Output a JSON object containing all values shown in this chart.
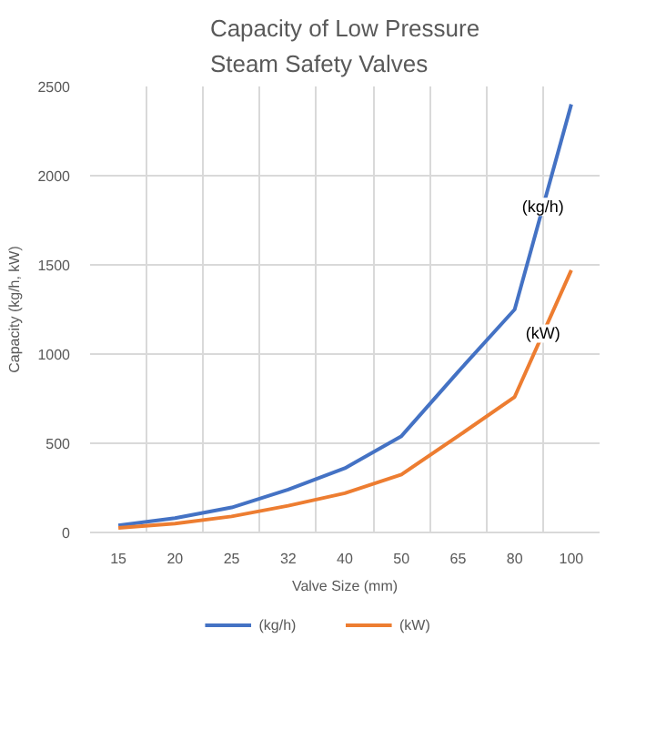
{
  "chart_data": {
    "type": "line",
    "title": "Capacity of Low Pressure Steam Safety Valves",
    "xlabel": "Valve Size (mm)",
    "ylabel": "Capacity (kg/h, kW)",
    "categories": [
      "15",
      "20",
      "25",
      "32",
      "40",
      "50",
      "65",
      "80",
      "100"
    ],
    "series": [
      {
        "name": "(kg/h)",
        "color": "#4472c4",
        "values": [
          40,
          80,
          140,
          240,
          360,
          540,
          900,
          1250,
          2400
        ]
      },
      {
        "name": "(kW)",
        "color": "#ed7d31",
        "values": [
          25,
          50,
          90,
          150,
          220,
          325,
          540,
          760,
          1470
        ]
      }
    ],
    "ylim": [
      0,
      2500
    ],
    "yticks": [
      0,
      500,
      1000,
      1500,
      2000,
      2500
    ],
    "grid": true,
    "legend": "bottom",
    "marker": "none",
    "line_style": "solid"
  }
}
